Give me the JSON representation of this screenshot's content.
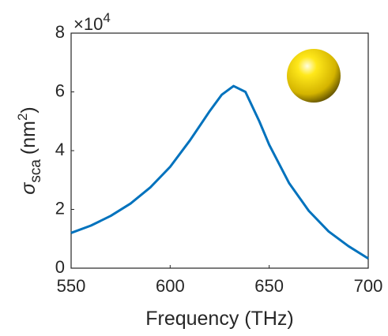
{
  "chart_data": {
    "type": "line",
    "xlabel": "Frequency (THz)",
    "ylabel": {
      "symbol": "σ",
      "subscript": "sca",
      "unit": "(nm",
      "unit_exponent": "2",
      "unit_close": ")"
    },
    "y_multiplier": {
      "base": "×10",
      "exponent": "4"
    },
    "x": [
      550,
      560,
      570,
      580,
      590,
      600,
      610,
      620,
      626,
      632,
      638,
      645,
      650,
      660,
      670,
      680,
      690,
      700
    ],
    "values": [
      1.2,
      1.45,
      1.78,
      2.2,
      2.75,
      3.45,
      4.35,
      5.35,
      5.9,
      6.2,
      6.0,
      5.0,
      4.2,
      2.9,
      1.95,
      1.25,
      0.75,
      0.33
    ],
    "color": "#0072bd",
    "xlim": [
      550,
      700
    ],
    "xticks": [
      550,
      600,
      650,
      700
    ],
    "ylim": [
      0,
      8
    ],
    "yticks": [
      0,
      2,
      4,
      6,
      8
    ],
    "grid": false
  }
}
